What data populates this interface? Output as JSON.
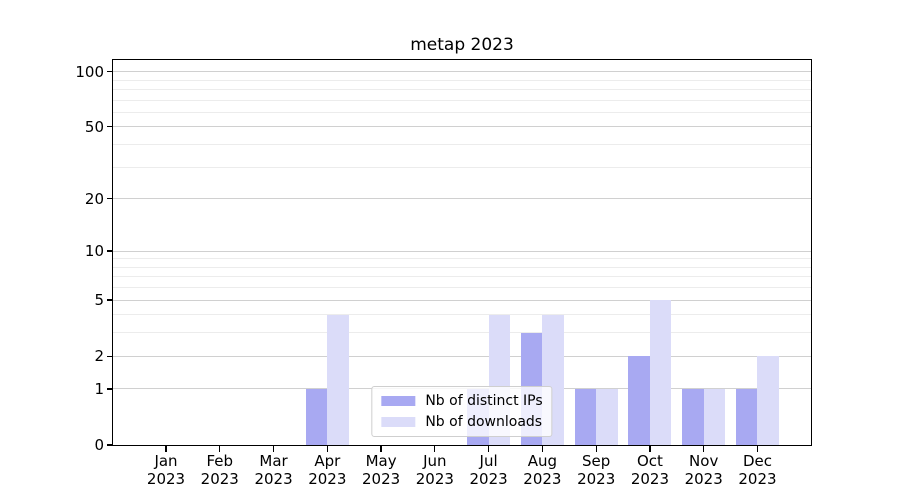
{
  "title": "metap 2023",
  "chart_data": {
    "type": "bar",
    "title": "metap 2023",
    "x_categories": [
      "Jan\n2023",
      "Feb\n2023",
      "Mar\n2023",
      "Apr\n2023",
      "May\n2023",
      "Jun\n2023",
      "Jul\n2023",
      "Aug\n2023",
      "Sep\n2023",
      "Oct\n2023",
      "Nov\n2023",
      "Dec\n2023"
    ],
    "series": [
      {
        "name": "Nb of distinct IPs",
        "color": "#a8a9f2",
        "values": [
          0,
          0,
          0,
          1,
          0,
          0,
          1,
          3,
          1,
          2,
          1,
          1
        ]
      },
      {
        "name": "Nb of downloads",
        "color": "#dbdcf9",
        "values": [
          0,
          0,
          0,
          4,
          0,
          0,
          4,
          4,
          1,
          5,
          1,
          2
        ]
      }
    ],
    "y_axis": {
      "scale": "log1p",
      "major_ticks": [
        0,
        1,
        2,
        5,
        10,
        20,
        50,
        100
      ],
      "minor_ticks": [
        3,
        4,
        6,
        7,
        8,
        9,
        30,
        40,
        60,
        70,
        80,
        90
      ]
    },
    "legend": {
      "position": "lower center",
      "entries": [
        "Nb of distinct IPs",
        "Nb of downloads"
      ]
    },
    "grid": "horizontal-major-and-minor"
  },
  "colors": {
    "bar_distinct_ips": "#a8a9f2",
    "bar_downloads": "#dbdcf9",
    "grid_major": "#d0d0d0",
    "grid_minor": "#ececec",
    "axis": "#000000",
    "background": "#ffffff"
  }
}
